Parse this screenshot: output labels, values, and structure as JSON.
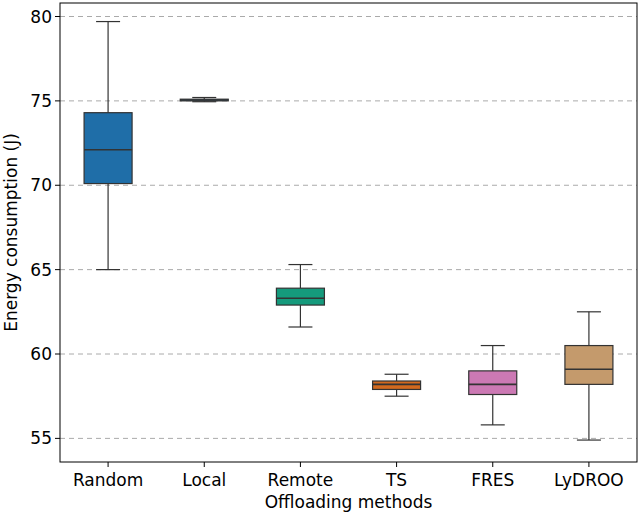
{
  "chart_data": {
    "type": "box",
    "x_label": "Offloading methods",
    "y_label": "Energy consumption (J)",
    "categories": [
      "Random",
      "Local",
      "Remote",
      "TS",
      "FRES",
      "LyDROO"
    ],
    "min": [
      65.0,
      74.95,
      61.6,
      57.5,
      55.8,
      54.9
    ],
    "q1": [
      70.1,
      75.0,
      62.9,
      57.9,
      57.6,
      58.2
    ],
    "median": [
      72.1,
      75.05,
      63.3,
      58.2,
      58.2,
      59.1
    ],
    "q3": [
      74.3,
      75.1,
      63.9,
      58.4,
      59.0,
      60.5
    ],
    "max": [
      79.7,
      75.2,
      65.3,
      58.8,
      60.5,
      62.5
    ],
    "colors": [
      "#1f6ea8",
      "#1f6ea8",
      "#159a7c",
      "#d2691e",
      "#cc79b4",
      "#c49a6c"
    ],
    "ylim": [
      53.6,
      80.8
    ],
    "yticks": [
      55,
      60,
      65,
      70,
      75,
      80
    ],
    "grid": true
  }
}
